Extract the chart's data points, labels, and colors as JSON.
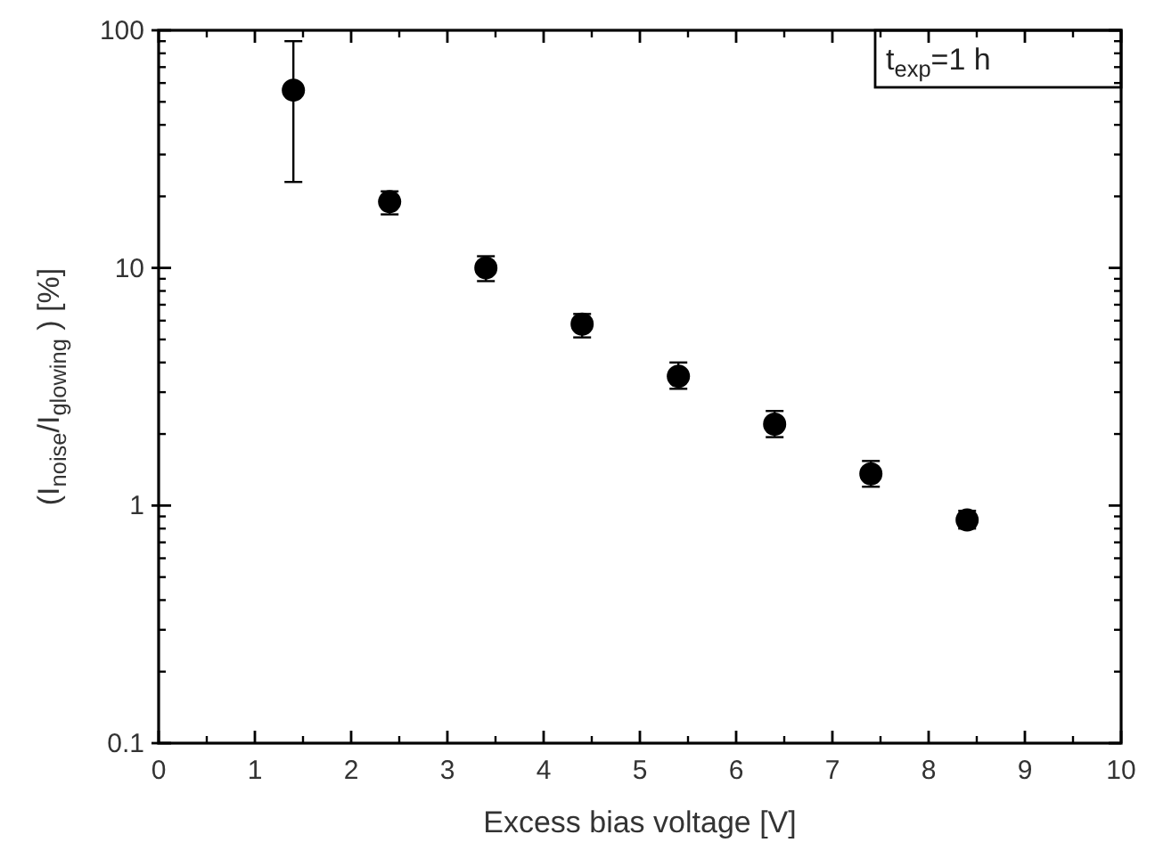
{
  "chart_data": {
    "type": "scatter",
    "xlabel": "Excess bias voltage [V]",
    "ylabel": "(I$_{noise}$/I$_{glowing}$ ) [%]",
    "annotations": [
      "t$_{exp}$=1 h"
    ],
    "x": [
      1.4,
      2.4,
      3.4,
      4.4,
      5.4,
      6.4,
      7.4,
      8.4
    ],
    "series": [
      {
        "color": "#000000",
        "values": [
          56,
          19,
          10,
          5.8,
          3.5,
          2.2,
          1.36,
          0.87
        ],
        "errors": [
          [
            23,
            90
          ],
          [
            16.8,
            21
          ],
          [
            8.8,
            11.2
          ],
          [
            5.1,
            6.4
          ],
          [
            3.1,
            4.0
          ],
          [
            1.94,
            2.5
          ],
          [
            1.2,
            1.54
          ],
          [
            0.8,
            0.95
          ]
        ]
      }
    ],
    "xlim": [
      0,
      10
    ],
    "xticks": [
      0,
      1,
      2,
      3,
      4,
      5,
      6,
      7,
      8,
      9,
      10
    ],
    "ylim": [
      0.1,
      100
    ],
    "yticks": [
      0.1,
      1,
      10,
      100
    ],
    "log": "y",
    "marker": "circle",
    "grid": false
  }
}
